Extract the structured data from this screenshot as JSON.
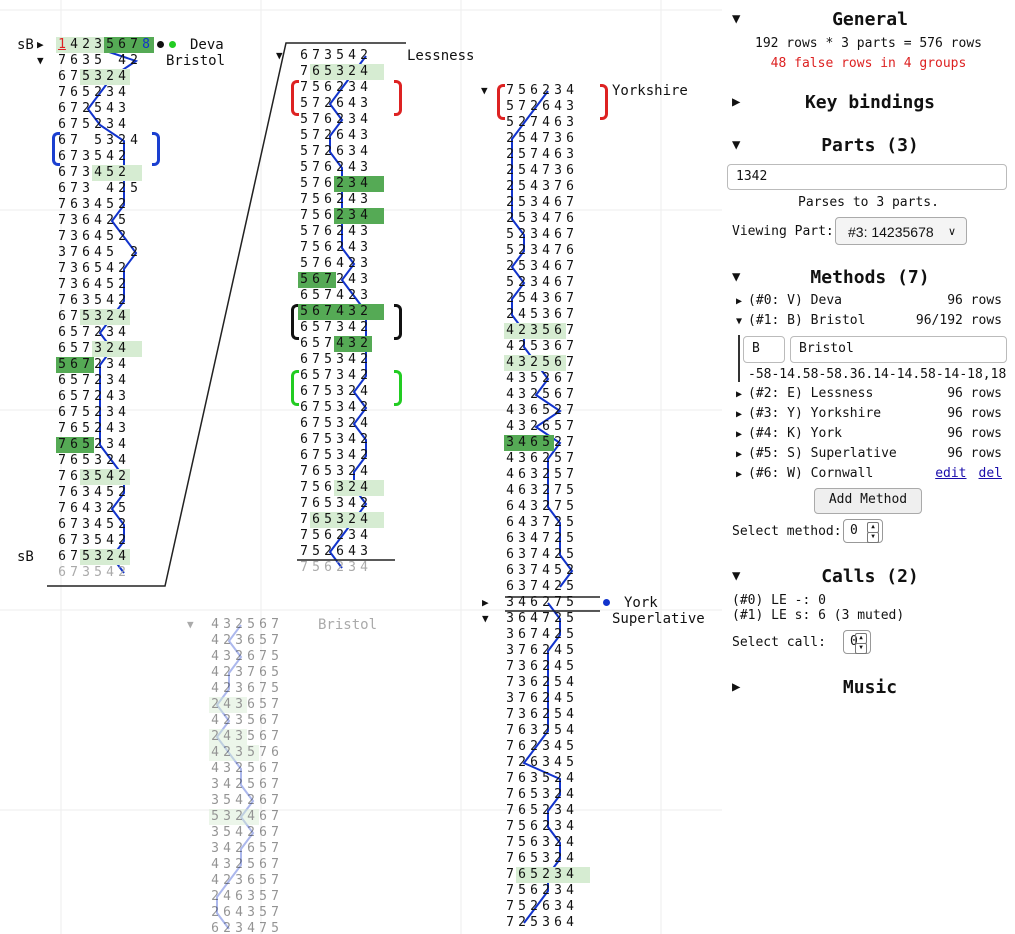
{
  "columns": [
    {
      "id": "c1",
      "label1": "Deva",
      "label2": "Bristol",
      "prefix_top": "sB",
      "prefix_bottom": "sB",
      "rows": [
        "14235678",
        "7635 42",
        "675324",
        "765234",
        "672543",
        "675234",
        "67 5324",
        "673542",
        "673452",
        "673 425",
        "763452",
        "736425",
        "736452",
        "37645 2",
        "736542",
        "736452",
        "763542",
        "675324",
        "657234",
        "657324",
        "567234",
        "657234",
        "657243",
        "675234",
        "765243",
        "765234",
        "765324",
        "763542",
        "763452",
        "764325",
        "673452",
        "673542",
        "675324",
        "673542"
      ],
      "highlights": [
        {
          "row": 0,
          "from": 0,
          "to": 3,
          "c": "light"
        },
        {
          "row": 0,
          "from": 4,
          "to": 7,
          "c": "dark"
        },
        {
          "row": 1,
          "from": 0,
          "to": 0,
          "c": "none"
        },
        {
          "row": 2,
          "from": 2,
          "to": 5,
          "c": "light"
        },
        {
          "row": 8,
          "from": 3,
          "to": 6,
          "c": "light"
        },
        {
          "row": 17,
          "from": 2,
          "to": 5,
          "c": "light"
        },
        {
          "row": 19,
          "from": 3,
          "to": 6,
          "c": "light"
        },
        {
          "row": 20,
          "from": 0,
          "to": 2,
          "c": "dark"
        },
        {
          "row": 25,
          "from": 0,
          "to": 2,
          "c": "dark"
        },
        {
          "row": 27,
          "from": 2,
          "to": 5,
          "c": "light"
        },
        {
          "row": 32,
          "from": 2,
          "to": 5,
          "c": "light"
        }
      ],
      "grey_last": true
    },
    {
      "id": "c2",
      "label1": "Lessness",
      "rows": [
        "673542",
        "765324",
        "756234",
        "572643",
        "576234",
        "572643",
        "572634",
        "576243",
        "576234",
        "756243",
        "756234",
        "576243",
        "756243",
        "576423",
        "567243",
        "657423",
        "567432",
        "657342",
        "657432",
        "675342",
        "657342",
        "675324",
        "675342",
        "675324",
        "675342",
        "675342",
        "765324",
        "756324",
        "765342",
        "765324",
        "756234",
        "752643",
        "756234"
      ],
      "highlights": [
        {
          "row": 1,
          "from": 1,
          "to": 6,
          "c": "light"
        },
        {
          "row": 8,
          "from": 3,
          "to": 6,
          "c": "dark"
        },
        {
          "row": 10,
          "from": 3,
          "to": 6,
          "c": "dark"
        },
        {
          "row": 14,
          "from": 0,
          "to": 2,
          "c": "dark"
        },
        {
          "row": 16,
          "from": 0,
          "to": 2,
          "c": "dark"
        },
        {
          "row": 16,
          "from": 3,
          "to": 6,
          "c": "dark"
        },
        {
          "row": 18,
          "from": 3,
          "to": 5,
          "c": "dark"
        },
        {
          "row": 27,
          "from": 3,
          "to": 6,
          "c": "light"
        },
        {
          "row": 29,
          "from": 1,
          "to": 6,
          "c": "light"
        }
      ],
      "grey_last": true
    },
    {
      "id": "c3",
      "label1": "Yorkshire",
      "rows": [
        "756234",
        "572643",
        "527463",
        "254736",
        "257463",
        "254736",
        "254376",
        "253467",
        "253476",
        "523467",
        "523476",
        "253467",
        "523467",
        "254367",
        "245367",
        "423567",
        "425367",
        "432567",
        "435267",
        "432567",
        "436527",
        "432657",
        "346527",
        "436257",
        "463257",
        "463275",
        "643275",
        "643725",
        "634725",
        "637425",
        "637452",
        "637425"
      ],
      "highlights": [
        {
          "row": 15,
          "from": 0,
          "to": 4,
          "c": "light"
        },
        {
          "row": 17,
          "from": 0,
          "to": 4,
          "c": "light"
        },
        {
          "row": 22,
          "from": 0,
          "to": 3,
          "c": "dark"
        }
      ],
      "grey_last": false
    },
    {
      "id": "c4",
      "label1": "York",
      "label2": "Superlative",
      "rows": [
        "346275",
        "364725",
        "367425",
        "376245",
        "736245",
        "736254",
        "376245",
        "736254",
        "763254",
        "762345",
        "726345",
        "763524",
        "765324",
        "765234",
        "756234",
        "756324",
        "765324",
        "765234",
        "756234",
        "752634",
        "725364"
      ],
      "highlights": [
        {
          "row": 17,
          "from": 1,
          "to": 6,
          "c": "light"
        }
      ],
      "grey_last": false
    },
    {
      "id": "c5",
      "label1": "Bristol",
      "rows": [
        "432567",
        "423657",
        "432675",
        "423765",
        "423675",
        "243657",
        "423567",
        "243567",
        "423576",
        "432567",
        "342567",
        "354267",
        "532467",
        "354267",
        "342657",
        "432567",
        "423657",
        "246357",
        "264357",
        "623475"
      ],
      "highlights": [
        {
          "row": 5,
          "from": 0,
          "to": 2,
          "c": "light"
        },
        {
          "row": 7,
          "from": 0,
          "to": 2,
          "c": "light"
        },
        {
          "row": 8,
          "from": 0,
          "to": 3,
          "c": "light"
        },
        {
          "row": 12,
          "from": 0,
          "to": 3,
          "c": "light"
        }
      ],
      "grey_last": false
    }
  ],
  "sidebar": {
    "general": {
      "title": "General",
      "summary": "192 rows * 3 parts = 576 rows",
      "false_rows": "48 false rows in 4 groups"
    },
    "keybindings": {
      "title": "Key bindings"
    },
    "parts": {
      "title": "Parts (3)",
      "input_value": "1342",
      "parse_text": "Parses to 3 parts.",
      "viewing_label": "Viewing Part:",
      "viewing_value": "#3: 14235678"
    },
    "methods": {
      "title": "Methods (7)",
      "items": [
        {
          "label": "(#0: V) Deva",
          "rows": "96 rows"
        },
        {
          "label": "(#1: B) Bristol",
          "rows": "96/192 rows"
        },
        {
          "label": "(#2: E) Lessness",
          "rows": "96 rows"
        },
        {
          "label": "(#3: Y) Yorkshire",
          "rows": "96 rows"
        },
        {
          "label": "(#4: K) York",
          "rows": "96 rows"
        },
        {
          "label": "(#5: S) Superlative",
          "rows": "96 rows"
        },
        {
          "label": "(#6: W) Cornwall",
          "edit": "edit",
          "del": "del"
        }
      ],
      "expanded_shorthand": "B",
      "expanded_name": "Bristol",
      "expanded_notation": "-58-14.58-58.36.14-14.58-14-18,18",
      "add_label": "Add Method",
      "select_label": "Select method:",
      "select_value": "0"
    },
    "calls": {
      "title": "Calls (2)",
      "items": [
        "(#0) LE -: 0",
        "(#1) LE s: 6 (3 muted)"
      ],
      "select_label": "Select call:",
      "select_value": "0"
    },
    "music": {
      "title": "Music"
    }
  },
  "colors": {
    "blue": "#1133cc",
    "red": "#dd2222",
    "dark_green": "#55aa55",
    "light_green": "#d6ecd2",
    "bracket_red": "#dd2222",
    "bracket_blue": "#1a3fd0",
    "bracket_black": "#111111",
    "bracket_green": "#22cc22"
  }
}
